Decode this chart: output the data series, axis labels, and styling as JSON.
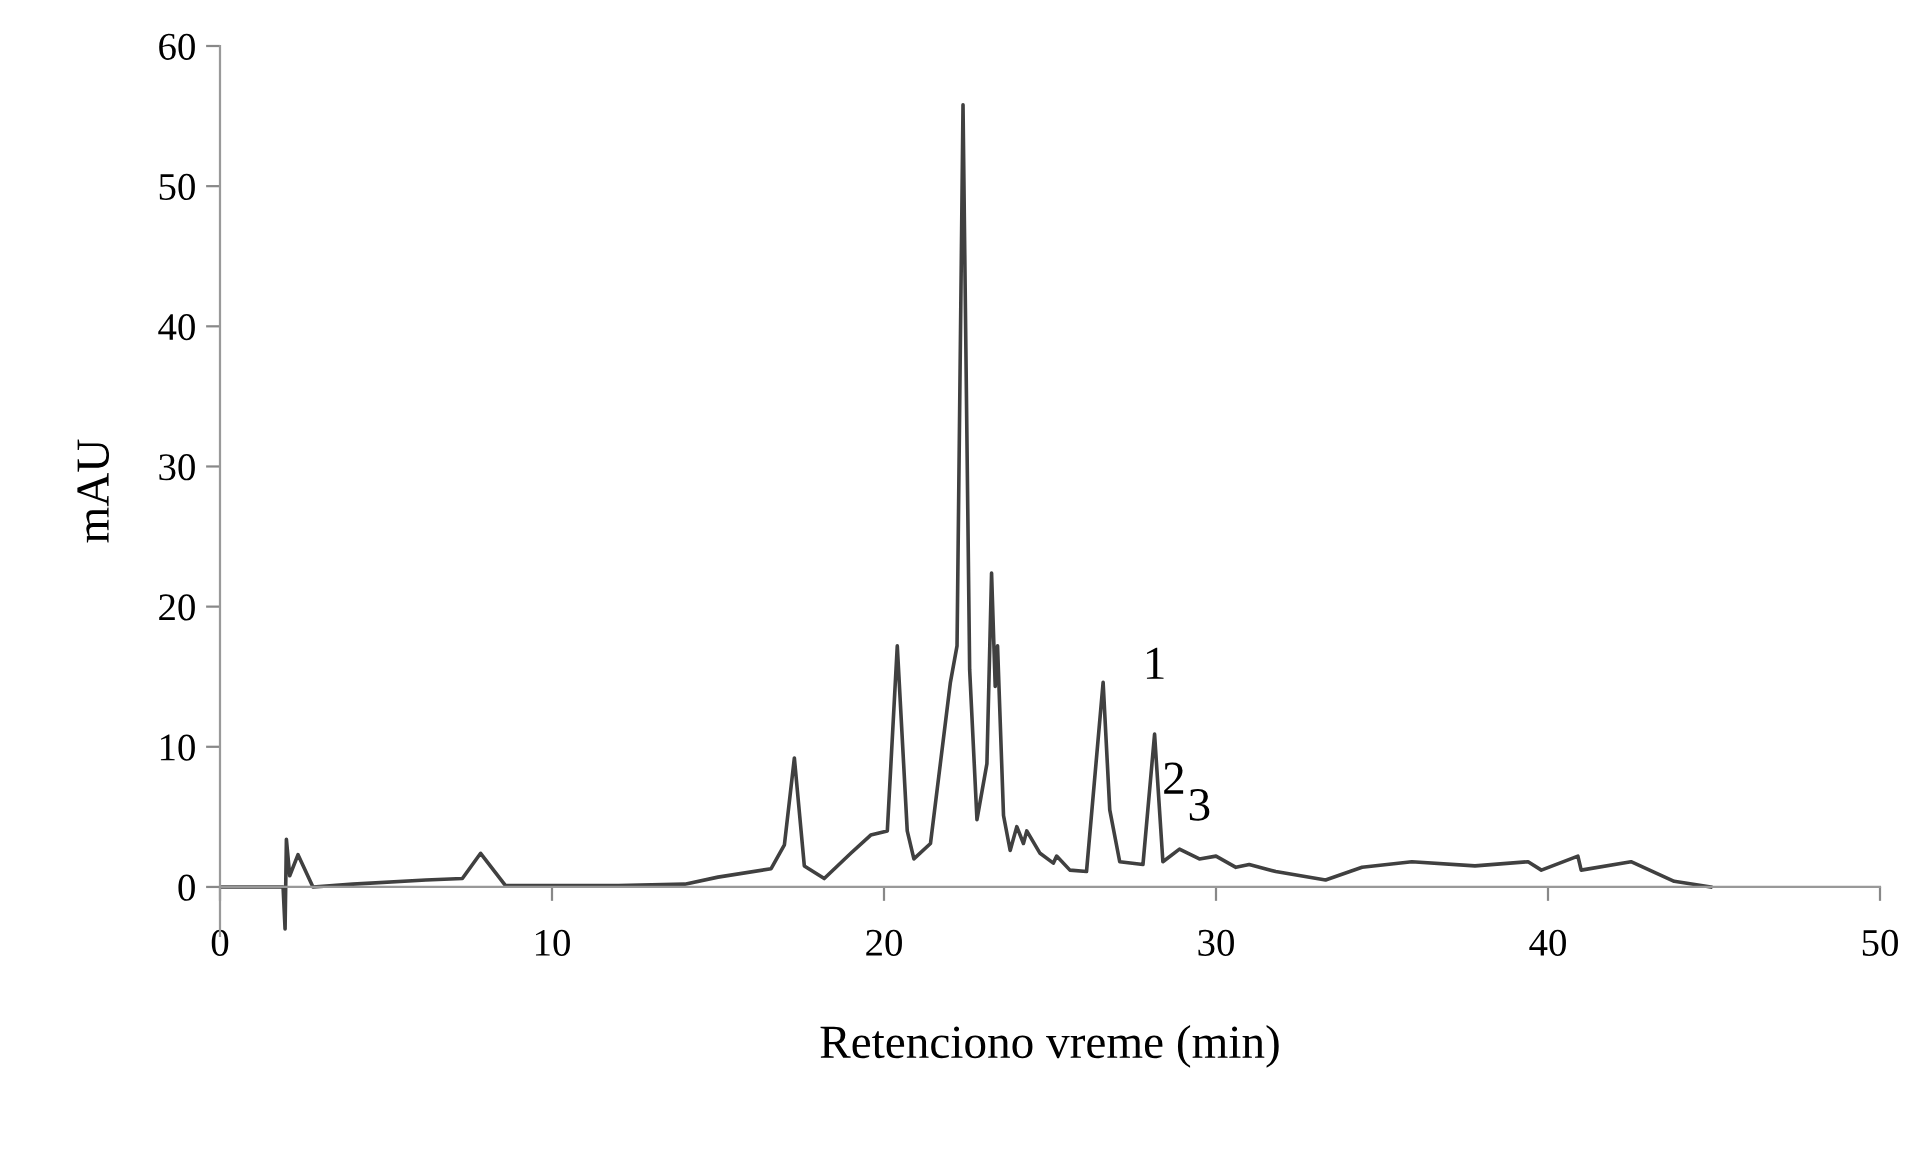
{
  "chart_data": {
    "type": "line",
    "xlabel": "Retenciono vreme (min)",
    "ylabel": "mAU",
    "xlim": [
      0,
      50
    ],
    "xticks": [
      0,
      10,
      20,
      30,
      40,
      50
    ],
    "ylim": [
      -3.5,
      60
    ],
    "yticks": [
      0,
      10,
      20,
      30,
      40,
      50,
      60
    ],
    "grid": false,
    "legend": false,
    "marker": "none",
    "line_style": "solid",
    "series": [
      {
        "color": "#404040",
        "x": [
          0,
          1.9,
          1.96,
          2.0,
          2.1,
          2.35,
          2.8,
          4,
          6.2,
          7.3,
          7.85,
          8.6,
          10,
          12,
          14,
          15,
          16.6,
          17.0,
          17.3,
          17.6,
          18.2,
          19.0,
          19.6,
          20.1,
          20.4,
          20.7,
          20.9,
          21.4,
          22.0,
          22.2,
          22.38,
          22.58,
          22.8,
          23.1,
          23.24,
          23.35,
          23.42,
          23.6,
          23.8,
          24.0,
          24.2,
          24.3,
          24.7,
          25.1,
          25.2,
          25.6,
          26.1,
          26.4,
          26.6,
          26.8,
          27.1,
          27.8,
          28.15,
          28.4,
          28.9,
          29.5,
          30.0,
          30.6,
          31.0,
          31.8,
          33.3,
          34.4,
          35.9,
          37.8,
          39.4,
          39.8,
          40.9,
          41.0,
          42.5,
          43.8,
          44.9
        ],
        "values": [
          0,
          0,
          -3,
          3.4,
          0.8,
          2.3,
          0,
          0.2,
          0.5,
          0.6,
          2.4,
          0.1,
          0.1,
          0.1,
          0.2,
          0.7,
          1.3,
          3,
          9.2,
          1.5,
          0.6,
          2.4,
          3.7,
          4.0,
          17.2,
          4,
          2.0,
          3.1,
          14.6,
          17.2,
          55.8,
          15.5,
          4.8,
          8.8,
          22.4,
          14.3,
          17.2,
          5.1,
          2.6,
          4.3,
          3.1,
          4.0,
          2.4,
          1.7,
          2.2,
          1.2,
          1.1,
          9.2,
          14.6,
          5.5,
          1.8,
          1.6,
          10.9,
          1.8,
          2.7,
          2.0,
          2.2,
          1.4,
          1.6,
          1.1,
          0.5,
          1.4,
          1.8,
          1.5,
          1.8,
          1.2,
          2.2,
          1.2,
          1.8,
          0.4,
          0
        ]
      }
    ],
    "annotations": [
      {
        "text": "1",
        "x": 28.15,
        "y": 10.9
      },
      {
        "text": "2",
        "x": 28.9,
        "y": 2.7
      },
      {
        "text": "3",
        "x": 30.0,
        "y": 2.2
      }
    ]
  }
}
